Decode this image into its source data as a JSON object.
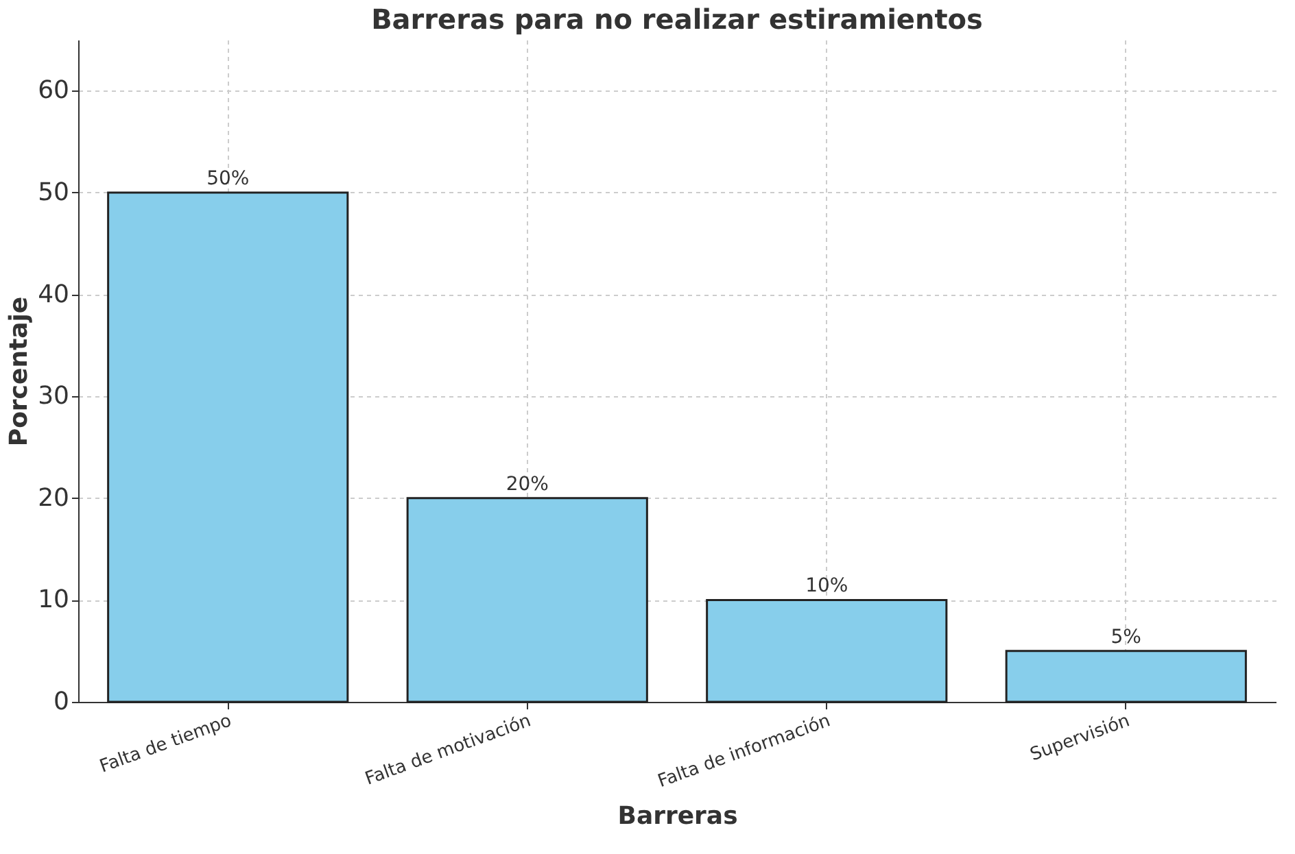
{
  "chart_data": {
    "type": "bar",
    "title": "Barreras para no realizar estiramientos",
    "xlabel": "Barreras",
    "ylabel": "Porcentaje",
    "categories": [
      "Falta de tiempo",
      "Falta de motivación",
      "Falta de información",
      "Supervisión"
    ],
    "values": [
      50,
      20,
      10,
      5
    ],
    "value_labels": [
      "50%",
      "20%",
      "10%",
      "5%"
    ],
    "color": "#87ceeb",
    "ylim": [
      0,
      65
    ],
    "yticks": [
      0,
      10,
      20,
      30,
      40,
      50,
      60
    ],
    "grid": true
  }
}
